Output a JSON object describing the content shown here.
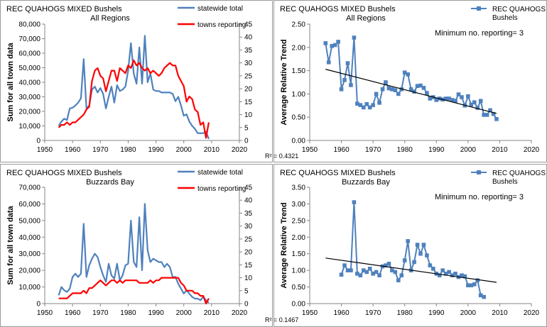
{
  "chart_data": [
    {
      "type": "line",
      "title": "REC QUAHOGS MIXED Bushels",
      "subtitle": "All Regions",
      "ylabel": "Sum for all town data",
      "xlim": [
        1950,
        2020
      ],
      "ylim": [
        0,
        80000
      ],
      "y2lim": [
        0,
        45
      ],
      "xticks": [
        1950,
        1960,
        1970,
        1980,
        1990,
        2000,
        2010,
        2020
      ],
      "yticks": [
        0,
        10000,
        20000,
        30000,
        40000,
        50000,
        60000,
        70000,
        80000
      ],
      "ytick_labels": [
        "0",
        "10,000",
        "20,000",
        "30,000",
        "40,000",
        "50,000",
        "60,000",
        "70,000",
        "80,000"
      ],
      "y2ticks": [
        0,
        5,
        10,
        15,
        20,
        25,
        30,
        35,
        40,
        45
      ],
      "legend_position": "top-right",
      "series": [
        {
          "name": "statewide total",
          "color": "#4f81bd",
          "axis": "left",
          "x": [
            1955,
            1956,
            1957,
            1958,
            1959,
            1960,
            1961,
            1962,
            1963,
            1964,
            1965,
            1966,
            1967,
            1968,
            1969,
            1970,
            1971,
            1972,
            1973,
            1974,
            1975,
            1976,
            1977,
            1978,
            1979,
            1980,
            1981,
            1982,
            1983,
            1984,
            1985,
            1986,
            1987,
            1988,
            1989,
            1990,
            1991,
            1992,
            1993,
            1994,
            1995,
            1996,
            1997,
            1998,
            1999,
            2000,
            2001,
            2002,
            2003,
            2004,
            2005,
            2006,
            2007,
            2008,
            2009
          ],
          "values": [
            10000,
            13000,
            15000,
            14000,
            22000,
            22500,
            24000,
            26000,
            29000,
            56000,
            22000,
            24000,
            35000,
            37000,
            33000,
            36000,
            32000,
            22000,
            30000,
            37000,
            26000,
            38000,
            34000,
            35000,
            37000,
            48000,
            67000,
            46000,
            39000,
            64000,
            39000,
            72000,
            40000,
            46000,
            35000,
            34000,
            34000,
            33000,
            33000,
            33000,
            33000,
            32000,
            27000,
            30000,
            24000,
            17000,
            18000,
            13000,
            10000,
            8000,
            5000,
            5000,
            5000,
            6000,
            1000
          ]
        },
        {
          "name": "towns reporting",
          "color": "#ff0000",
          "axis": "right",
          "x": [
            1955,
            1956,
            1957,
            1958,
            1959,
            1960,
            1961,
            1962,
            1963,
            1964,
            1965,
            1966,
            1967,
            1968,
            1969,
            1970,
            1971,
            1972,
            1973,
            1974,
            1975,
            1976,
            1977,
            1978,
            1979,
            1980,
            1981,
            1982,
            1983,
            1984,
            1985,
            1986,
            1987,
            1988,
            1989,
            1990,
            1991,
            1992,
            1993,
            1994,
            1995,
            1996,
            1997,
            1998,
            1999,
            2000,
            2001,
            2002,
            2003,
            2004,
            2005,
            2006,
            2007,
            2008,
            2009
          ],
          "values": [
            5,
            6,
            6,
            7,
            6,
            7,
            7,
            8,
            9,
            10,
            12,
            13,
            23,
            27,
            28,
            25,
            24,
            19,
            23,
            27,
            27,
            23,
            28,
            27,
            26,
            29,
            28,
            31,
            29,
            30,
            28,
            27,
            28,
            26,
            27,
            26,
            25,
            26,
            28,
            29,
            30,
            29,
            29,
            25,
            23,
            21,
            15,
            17,
            16,
            12,
            11,
            6,
            7,
            1,
            7
          ]
        }
      ]
    },
    {
      "type": "scatter",
      "title": "REC QUAHOGS MIXED Bushels",
      "subtitle": "All Regions",
      "ylabel": "Average Relative Trend",
      "annotation": "Minimum no. reporting= 3",
      "r2_label": "R² = 0.4321",
      "xlim": [
        1950,
        2020
      ],
      "ylim": [
        0,
        2.5
      ],
      "xticks": [
        1950,
        1960,
        1970,
        1980,
        1990,
        2000,
        2010,
        2020
      ],
      "yticks": [
        0,
        0.5,
        1.0,
        1.5,
        2.0,
        2.5
      ],
      "ytick_labels": [
        "0.00",
        "0.50",
        "1.00",
        "1.50",
        "2.00",
        "2.50"
      ],
      "legend_position": "top-right",
      "series": [
        {
          "name": "REC QUAHOGS MIXED Bushels",
          "color": "#4f81bd",
          "x": [
            1955,
            1956,
            1957,
            1958,
            1959,
            1960,
            1961,
            1962,
            1963,
            1964,
            1965,
            1966,
            1967,
            1968,
            1969,
            1970,
            1971,
            1972,
            1973,
            1974,
            1975,
            1976,
            1977,
            1978,
            1979,
            1980,
            1981,
            1982,
            1983,
            1984,
            1985,
            1986,
            1987,
            1988,
            1989,
            1990,
            1991,
            1992,
            1993,
            1994,
            1995,
            1996,
            1997,
            1998,
            1999,
            2000,
            2001,
            2002,
            2003,
            2004,
            2005,
            2006,
            2007,
            2008,
            2009
          ],
          "values": [
            2.09,
            1.68,
            2.03,
            2.05,
            2.12,
            1.1,
            1.3,
            1.66,
            1.19,
            2.21,
            0.79,
            0.76,
            0.71,
            0.78,
            0.71,
            0.76,
            1.0,
            0.81,
            1.1,
            1.25,
            1.12,
            1.1,
            1.08,
            1.0,
            1.1,
            1.46,
            1.42,
            1.1,
            1.05,
            1.17,
            1.18,
            1.13,
            1.02,
            0.9,
            0.93,
            0.87,
            0.9,
            0.88,
            0.9,
            0.9,
            0.87,
            0.85,
            0.99,
            0.93,
            0.75,
            0.95,
            0.77,
            0.82,
            0.7,
            0.85,
            0.55,
            0.55,
            0.65,
            0.57,
            0.46
          ]
        }
      ],
      "trendline": {
        "x": [
          1955,
          2009
        ],
        "values": [
          1.53,
          0.58
        ],
        "color": "#000000"
      }
    },
    {
      "type": "line",
      "title": "REC QUAHOGS MIXED Bushels",
      "subtitle": "Buzzards Bay",
      "ylabel": "Sum for all town data",
      "xlim": [
        1950,
        2020
      ],
      "ylim": [
        0,
        70000
      ],
      "y2lim": [
        0,
        45
      ],
      "xticks": [
        1950,
        1960,
        1970,
        1980,
        1990,
        2000,
        2010,
        2020
      ],
      "yticks": [
        0,
        10000,
        20000,
        30000,
        40000,
        50000,
        60000,
        70000
      ],
      "ytick_labels": [
        "0",
        "10,000",
        "20,000",
        "30,000",
        "40,000",
        "50,000",
        "60,000",
        "70,000"
      ],
      "y2ticks": [
        0,
        5,
        10,
        15,
        20,
        25,
        30,
        35,
        40,
        45
      ],
      "legend_position": "top-right",
      "series": [
        {
          "name": "statewide total",
          "color": "#4f81bd",
          "axis": "left",
          "x": [
            1955,
            1956,
            1957,
            1958,
            1959,
            1960,
            1961,
            1962,
            1963,
            1964,
            1965,
            1966,
            1967,
            1968,
            1969,
            1970,
            1971,
            1972,
            1973,
            1974,
            1975,
            1976,
            1977,
            1978,
            1979,
            1980,
            1981,
            1982,
            1983,
            1984,
            1985,
            1986,
            1987,
            1988,
            1989,
            1990,
            1991,
            1992,
            1993,
            1994,
            1995,
            1996,
            1997,
            1998,
            1999,
            2000,
            2001,
            2002,
            2003,
            2004,
            2005,
            2006,
            2007,
            2008,
            2009
          ],
          "values": [
            5000,
            10000,
            8000,
            7000,
            9000,
            16000,
            18000,
            16000,
            18000,
            48000,
            16000,
            23000,
            27000,
            30000,
            28000,
            22000,
            17000,
            13000,
            24000,
            17000,
            15000,
            24000,
            14000,
            17000,
            23000,
            24000,
            50000,
            25000,
            22000,
            52000,
            20000,
            60000,
            32000,
            25000,
            27000,
            26000,
            25000,
            25000,
            22000,
            24000,
            22000,
            16000,
            16000,
            12000,
            9000,
            6000,
            8000,
            6000,
            4000,
            3000,
            3000,
            2000,
            4000,
            2000,
            500
          ]
        },
        {
          "name": "towns reporting",
          "color": "#ff0000",
          "axis": "right",
          "x": [
            1955,
            1956,
            1957,
            1958,
            1959,
            1960,
            1961,
            1962,
            1963,
            1964,
            1965,
            1966,
            1967,
            1968,
            1969,
            1970,
            1971,
            1972,
            1973,
            1974,
            1975,
            1976,
            1977,
            1978,
            1979,
            1980,
            1981,
            1982,
            1983,
            1984,
            1985,
            1986,
            1987,
            1988,
            1989,
            1990,
            1991,
            1992,
            1993,
            1994,
            1995,
            1996,
            1997,
            1998,
            1999,
            2000,
            2001,
            2002,
            2003,
            2004,
            2005,
            2006,
            2007,
            2008,
            2009
          ],
          "values": [
            2,
            2,
            2,
            2,
            3,
            4,
            4,
            4,
            4,
            5,
            4,
            6,
            6,
            7,
            8,
            9,
            8,
            7,
            8,
            9,
            9,
            8,
            9,
            8,
            9,
            9,
            9,
            9,
            9,
            8,
            8,
            8,
            8,
            9,
            8,
            9,
            9,
            10,
            10,
            10,
            10,
            10,
            10,
            10,
            8,
            7,
            5,
            5,
            5,
            4,
            4,
            3,
            3,
            0,
            2
          ]
        }
      ]
    },
    {
      "type": "scatter",
      "title": "REC QUAHOGS MIXED Bushels",
      "subtitle": "Buzzards Bay",
      "ylabel": "Average Relative Trend",
      "annotation": "Minimum no. reporting= 3",
      "r2_label": "R² = 0.1467",
      "xlim": [
        1950,
        2020
      ],
      "ylim": [
        0,
        3.5
      ],
      "xticks": [
        1950,
        1960,
        1970,
        1980,
        1990,
        2000,
        2010,
        2020
      ],
      "yticks": [
        0,
        0.5,
        1.0,
        1.5,
        2.0,
        2.5,
        3.0,
        3.5
      ],
      "ytick_labels": [
        "0.00",
        "0.50",
        "1.00",
        "1.50",
        "2.00",
        "2.50",
        "3.00",
        "3.50"
      ],
      "legend_position": "top-right",
      "series": [
        {
          "name": "REC QUAHOGS MIXED Bushels",
          "color": "#4f81bd",
          "x": [
            1960,
            1961,
            1962,
            1963,
            1964,
            1965,
            1966,
            1967,
            1968,
            1969,
            1970,
            1971,
            1972,
            1973,
            1974,
            1975,
            1976,
            1977,
            1978,
            1979,
            1980,
            1981,
            1982,
            1983,
            1984,
            1985,
            1986,
            1987,
            1988,
            1989,
            1990,
            1991,
            1992,
            1993,
            1994,
            1995,
            1996,
            1997,
            1998,
            1999,
            2000,
            2001,
            2002,
            2003,
            2004,
            2005
          ],
          "values": [
            0.87,
            1.15,
            1.0,
            1.0,
            3.05,
            0.9,
            0.85,
            1.0,
            0.95,
            1.05,
            0.9,
            0.95,
            0.85,
            1.12,
            1.15,
            1.2,
            1.0,
            0.95,
            0.7,
            0.85,
            1.3,
            1.88,
            1.0,
            1.25,
            1.77,
            1.5,
            1.77,
            1.45,
            1.15,
            1.05,
            0.9,
            0.85,
            1.0,
            0.9,
            0.95,
            0.85,
            0.9,
            0.8,
            0.85,
            0.82,
            0.55,
            0.55,
            0.58,
            0.7,
            0.25,
            0.2
          ]
        }
      ],
      "trendline": {
        "x": [
          1955,
          2009
        ],
        "values": [
          1.37,
          0.64
        ],
        "color": "#000000"
      }
    }
  ]
}
